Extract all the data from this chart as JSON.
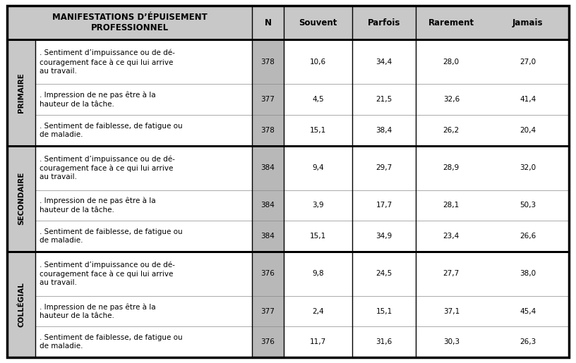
{
  "header_text": "MANIFESTATIONS D’ÉPUISEMENT\nPROFESSIONNEL",
  "header_n": "N",
  "headers": [
    "Souvent",
    "Parfois",
    "Rarement",
    "Jamais"
  ],
  "sections": [
    {
      "label": "PRIMAIRE",
      "rows": [
        {
          "text": ". Sentiment d’impuissance ou de dé-\ncouragement face à ce qui lui arrive\nau travail.",
          "n": "378",
          "values": [
            "10,6",
            "34,4",
            "28,0",
            "27,0"
          ]
        },
        {
          "text": ". Impression de ne pas être à la\nhauteur de la tâche.",
          "n": "377",
          "values": [
            "4,5",
            "21,5",
            "32,6",
            "41,4"
          ]
        },
        {
          "text": ". Sentiment de faiblesse, de fatigue ou\nde maladie.",
          "n": "378",
          "values": [
            "15,1",
            "38,4",
            "26,2",
            "20,4"
          ]
        }
      ]
    },
    {
      "label": "SECONDAIRE",
      "rows": [
        {
          "text": ". Sentiment d’impuissance ou de dé-\ncouragement face à ce qui lui arrive\nau travail.",
          "n": "384",
          "values": [
            "9,4",
            "29,7",
            "28,9",
            "32,0"
          ]
        },
        {
          "text": ". Impression de ne pas être à la\nhauteur de la tâche.",
          "n": "384",
          "values": [
            "3,9",
            "17,7",
            "28,1",
            "50,3"
          ]
        },
        {
          "text": ". Sentiment de faiblesse, de fatigue ou\nde maladie.",
          "n": "384",
          "values": [
            "15,1",
            "34,9",
            "23,4",
            "26,6"
          ]
        }
      ]
    },
    {
      "label": "COLLÉGIAL",
      "rows": [
        {
          "text": ". Sentiment d’impuissance ou de dé-\ncouragement face à ce qui lui arrive\nau travail.",
          "n": "376",
          "values": [
            "9,8",
            "24,5",
            "27,7",
            "38,0"
          ]
        },
        {
          "text": ". Impression de ne pas être à la\nhauteur de la tâche.",
          "n": "377",
          "values": [
            "2,4",
            "15,1",
            "37,1",
            "45,4"
          ]
        },
        {
          "text": ". Sentiment de faiblesse, de fatigue ou\nde maladie.",
          "n": "376",
          "values": [
            "11,7",
            "31,6",
            "30,3",
            "26,3"
          ]
        }
      ]
    }
  ],
  "bg_header": "#c8c8c8",
  "bg_label": "#c8c8c8",
  "bg_n": "#b8b8b8",
  "bg_white": "#ffffff",
  "text_color": "#000000",
  "font_size": 7.5,
  "header_font_size": 8.5,
  "label_font_size": 7.5
}
